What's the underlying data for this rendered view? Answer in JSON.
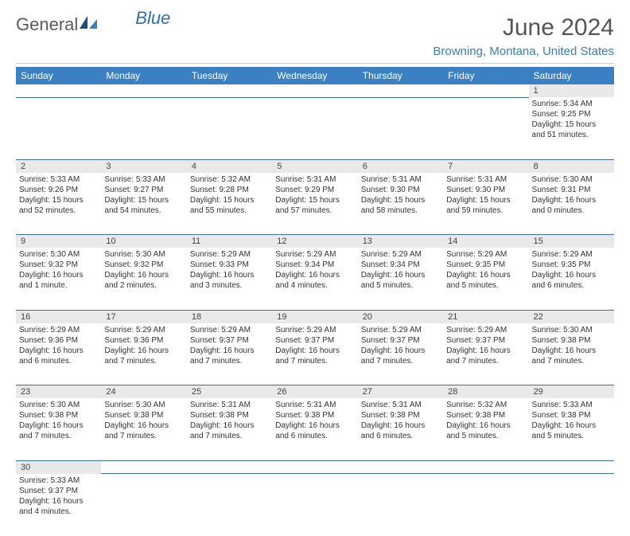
{
  "logo": {
    "text_general": "General",
    "text_blue": "Blue"
  },
  "header": {
    "month": "June 2024",
    "location": "Browning, Montana, United States"
  },
  "colors": {
    "header_bg": "#3a80c3",
    "header_text": "#ffffff",
    "daynum_bg": "#e9e9e9",
    "rule": "#3a6fa0",
    "location_color": "#3a7db9"
  },
  "weekdays": [
    "Sunday",
    "Monday",
    "Tuesday",
    "Wednesday",
    "Thursday",
    "Friday",
    "Saturday"
  ],
  "weeks": [
    [
      null,
      null,
      null,
      null,
      null,
      null,
      {
        "n": "1",
        "sr": "Sunrise: 5:34 AM",
        "ss": "Sunset: 9:25 PM",
        "dl1": "Daylight: 15 hours",
        "dl2": "and 51 minutes."
      }
    ],
    [
      {
        "n": "2",
        "sr": "Sunrise: 5:33 AM",
        "ss": "Sunset: 9:26 PM",
        "dl1": "Daylight: 15 hours",
        "dl2": "and 52 minutes."
      },
      {
        "n": "3",
        "sr": "Sunrise: 5:33 AM",
        "ss": "Sunset: 9:27 PM",
        "dl1": "Daylight: 15 hours",
        "dl2": "and 54 minutes."
      },
      {
        "n": "4",
        "sr": "Sunrise: 5:32 AM",
        "ss": "Sunset: 9:28 PM",
        "dl1": "Daylight: 15 hours",
        "dl2": "and 55 minutes."
      },
      {
        "n": "5",
        "sr": "Sunrise: 5:31 AM",
        "ss": "Sunset: 9:29 PM",
        "dl1": "Daylight: 15 hours",
        "dl2": "and 57 minutes."
      },
      {
        "n": "6",
        "sr": "Sunrise: 5:31 AM",
        "ss": "Sunset: 9:30 PM",
        "dl1": "Daylight: 15 hours",
        "dl2": "and 58 minutes."
      },
      {
        "n": "7",
        "sr": "Sunrise: 5:31 AM",
        "ss": "Sunset: 9:30 PM",
        "dl1": "Daylight: 15 hours",
        "dl2": "and 59 minutes."
      },
      {
        "n": "8",
        "sr": "Sunrise: 5:30 AM",
        "ss": "Sunset: 9:31 PM",
        "dl1": "Daylight: 16 hours",
        "dl2": "and 0 minutes."
      }
    ],
    [
      {
        "n": "9",
        "sr": "Sunrise: 5:30 AM",
        "ss": "Sunset: 9:32 PM",
        "dl1": "Daylight: 16 hours",
        "dl2": "and 1 minute."
      },
      {
        "n": "10",
        "sr": "Sunrise: 5:30 AM",
        "ss": "Sunset: 9:32 PM",
        "dl1": "Daylight: 16 hours",
        "dl2": "and 2 minutes."
      },
      {
        "n": "11",
        "sr": "Sunrise: 5:29 AM",
        "ss": "Sunset: 9:33 PM",
        "dl1": "Daylight: 16 hours",
        "dl2": "and 3 minutes."
      },
      {
        "n": "12",
        "sr": "Sunrise: 5:29 AM",
        "ss": "Sunset: 9:34 PM",
        "dl1": "Daylight: 16 hours",
        "dl2": "and 4 minutes."
      },
      {
        "n": "13",
        "sr": "Sunrise: 5:29 AM",
        "ss": "Sunset: 9:34 PM",
        "dl1": "Daylight: 16 hours",
        "dl2": "and 5 minutes."
      },
      {
        "n": "14",
        "sr": "Sunrise: 5:29 AM",
        "ss": "Sunset: 9:35 PM",
        "dl1": "Daylight: 16 hours",
        "dl2": "and 5 minutes."
      },
      {
        "n": "15",
        "sr": "Sunrise: 5:29 AM",
        "ss": "Sunset: 9:35 PM",
        "dl1": "Daylight: 16 hours",
        "dl2": "and 6 minutes."
      }
    ],
    [
      {
        "n": "16",
        "sr": "Sunrise: 5:29 AM",
        "ss": "Sunset: 9:36 PM",
        "dl1": "Daylight: 16 hours",
        "dl2": "and 6 minutes."
      },
      {
        "n": "17",
        "sr": "Sunrise: 5:29 AM",
        "ss": "Sunset: 9:36 PM",
        "dl1": "Daylight: 16 hours",
        "dl2": "and 7 minutes."
      },
      {
        "n": "18",
        "sr": "Sunrise: 5:29 AM",
        "ss": "Sunset: 9:37 PM",
        "dl1": "Daylight: 16 hours",
        "dl2": "and 7 minutes."
      },
      {
        "n": "19",
        "sr": "Sunrise: 5:29 AM",
        "ss": "Sunset: 9:37 PM",
        "dl1": "Daylight: 16 hours",
        "dl2": "and 7 minutes."
      },
      {
        "n": "20",
        "sr": "Sunrise: 5:29 AM",
        "ss": "Sunset: 9:37 PM",
        "dl1": "Daylight: 16 hours",
        "dl2": "and 7 minutes."
      },
      {
        "n": "21",
        "sr": "Sunrise: 5:29 AM",
        "ss": "Sunset: 9:37 PM",
        "dl1": "Daylight: 16 hours",
        "dl2": "and 7 minutes."
      },
      {
        "n": "22",
        "sr": "Sunrise: 5:30 AM",
        "ss": "Sunset: 9:38 PM",
        "dl1": "Daylight: 16 hours",
        "dl2": "and 7 minutes."
      }
    ],
    [
      {
        "n": "23",
        "sr": "Sunrise: 5:30 AM",
        "ss": "Sunset: 9:38 PM",
        "dl1": "Daylight: 16 hours",
        "dl2": "and 7 minutes."
      },
      {
        "n": "24",
        "sr": "Sunrise: 5:30 AM",
        "ss": "Sunset: 9:38 PM",
        "dl1": "Daylight: 16 hours",
        "dl2": "and 7 minutes."
      },
      {
        "n": "25",
        "sr": "Sunrise: 5:31 AM",
        "ss": "Sunset: 9:38 PM",
        "dl1": "Daylight: 16 hours",
        "dl2": "and 7 minutes."
      },
      {
        "n": "26",
        "sr": "Sunrise: 5:31 AM",
        "ss": "Sunset: 9:38 PM",
        "dl1": "Daylight: 16 hours",
        "dl2": "and 6 minutes."
      },
      {
        "n": "27",
        "sr": "Sunrise: 5:31 AM",
        "ss": "Sunset: 9:38 PM",
        "dl1": "Daylight: 16 hours",
        "dl2": "and 6 minutes."
      },
      {
        "n": "28",
        "sr": "Sunrise: 5:32 AM",
        "ss": "Sunset: 9:38 PM",
        "dl1": "Daylight: 16 hours",
        "dl2": "and 5 minutes."
      },
      {
        "n": "29",
        "sr": "Sunrise: 5:33 AM",
        "ss": "Sunset: 9:38 PM",
        "dl1": "Daylight: 16 hours",
        "dl2": "and 5 minutes."
      }
    ],
    [
      {
        "n": "30",
        "sr": "Sunrise: 5:33 AM",
        "ss": "Sunset: 9:37 PM",
        "dl1": "Daylight: 16 hours",
        "dl2": "and 4 minutes."
      },
      null,
      null,
      null,
      null,
      null,
      null
    ]
  ]
}
